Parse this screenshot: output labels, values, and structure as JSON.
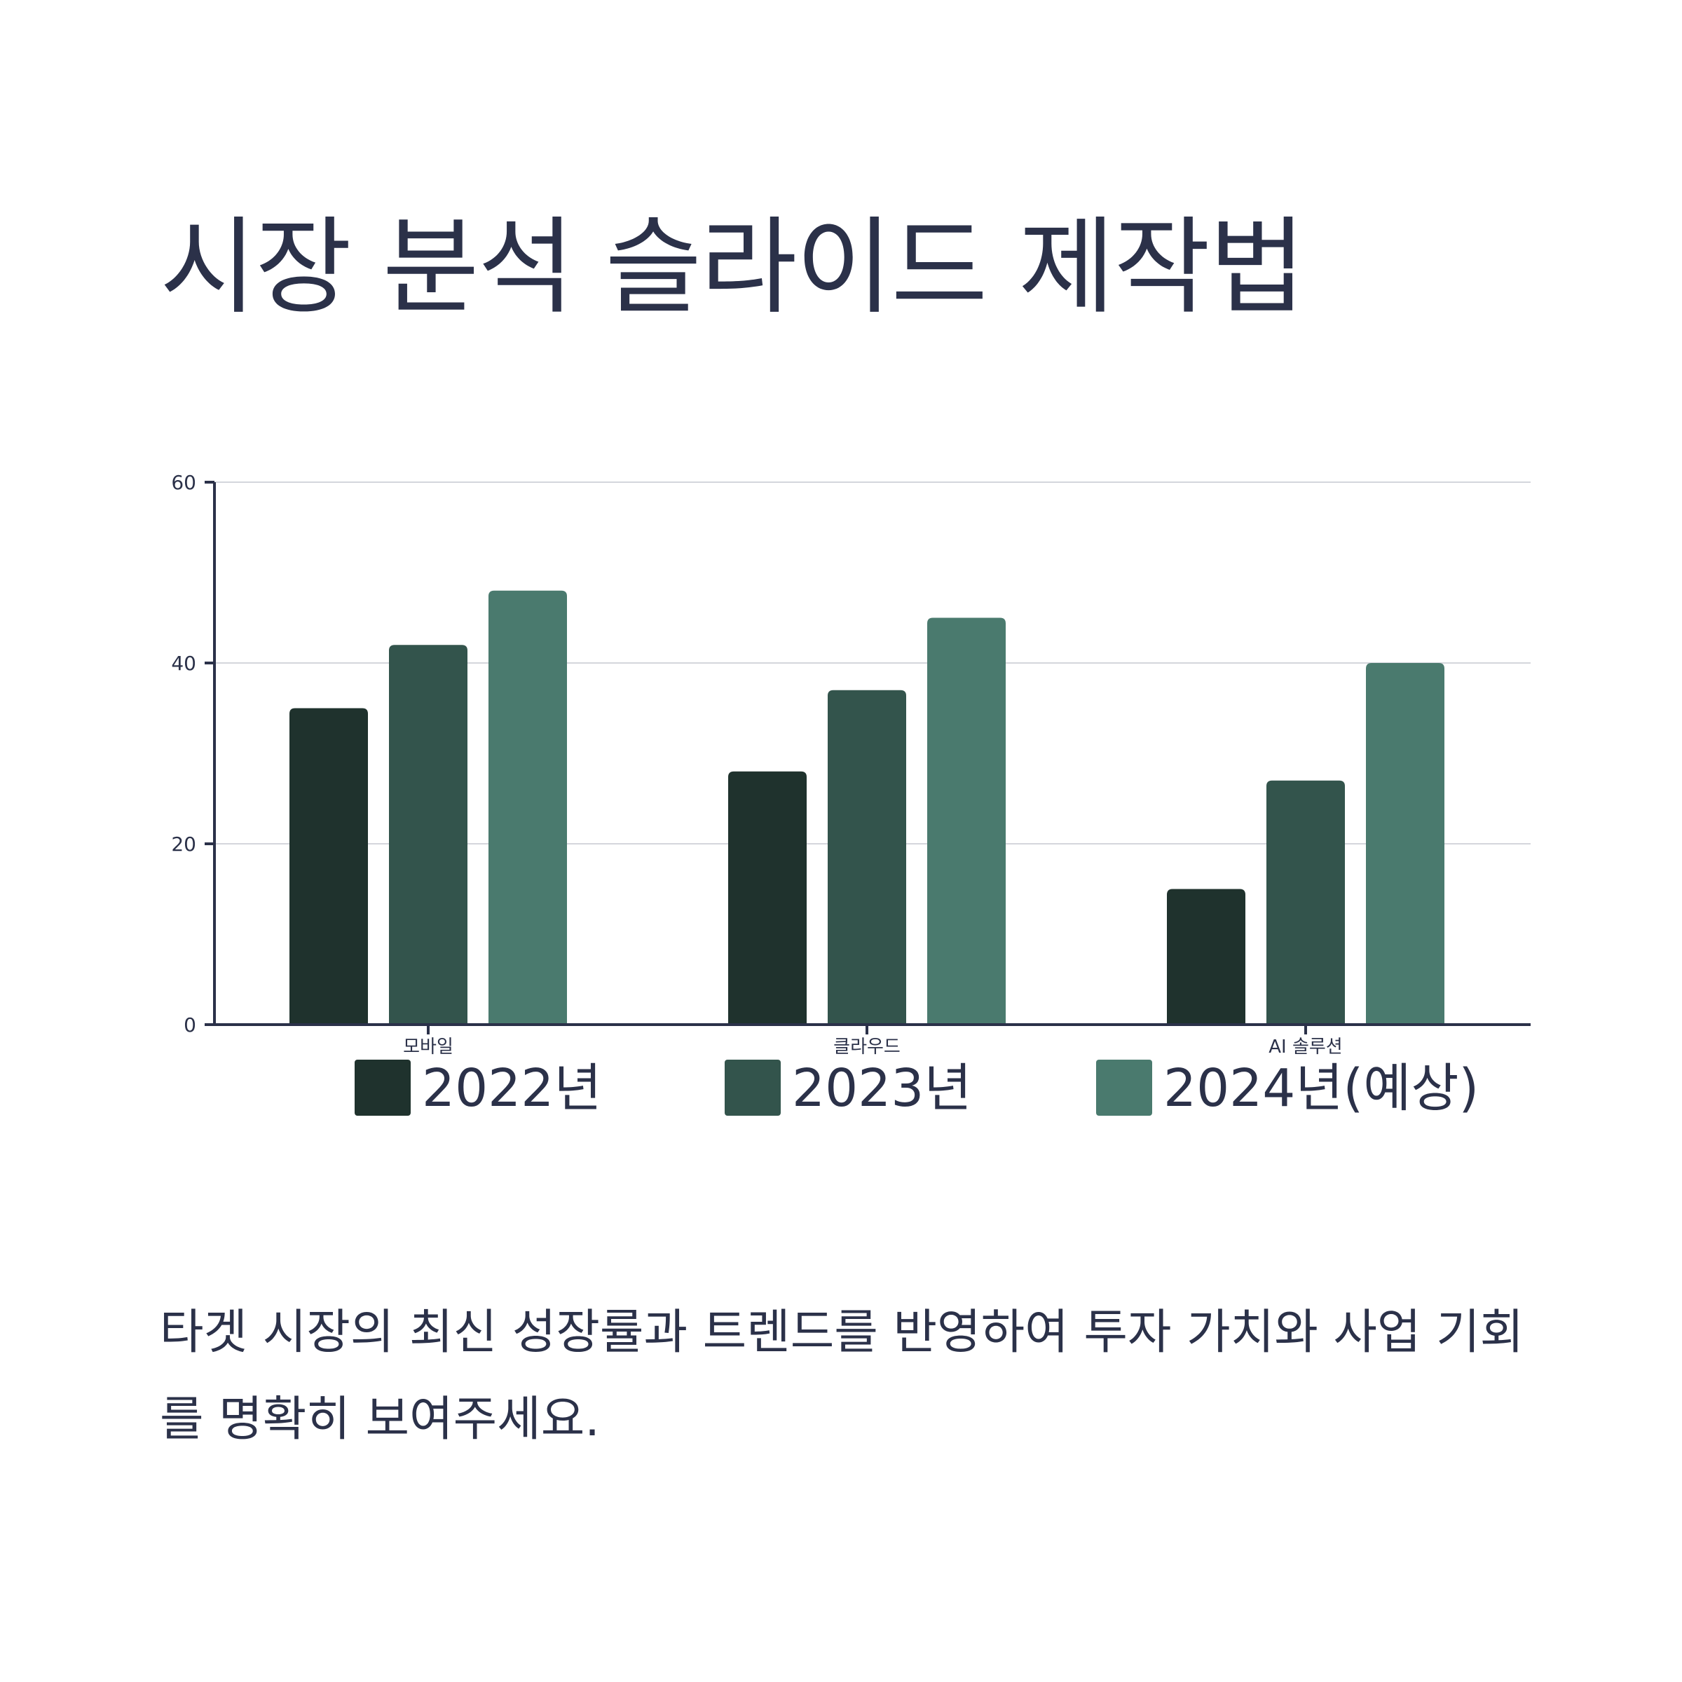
{
  "title": "시장 분석 슬라이드 제작법",
  "description": "타겟 시장의 최신 성장률과 트렌드를 반영하여 투자 가치와 사업 기회를 명확히 보여주세요.",
  "chart_data": {
    "type": "bar",
    "categories": [
      "모바일",
      "클라우드",
      "AI 솔루션"
    ],
    "series": [
      {
        "name": "2022년",
        "values": [
          35,
          28,
          15
        ],
        "color": "#1f322d"
      },
      {
        "name": "2023년",
        "values": [
          42,
          37,
          27
        ],
        "color": "#33544c"
      },
      {
        "name": "2024년(예상)",
        "values": [
          48,
          45,
          40
        ],
        "color": "#4a7a6e"
      }
    ],
    "ylim": [
      0,
      60
    ],
    "yticks": [
      0,
      20,
      40,
      60
    ],
    "grid": true,
    "legend": "bottom",
    "colors": {
      "axis": "#2b3149",
      "grid": "#d4d6dc",
      "text": "#2b3149"
    }
  }
}
